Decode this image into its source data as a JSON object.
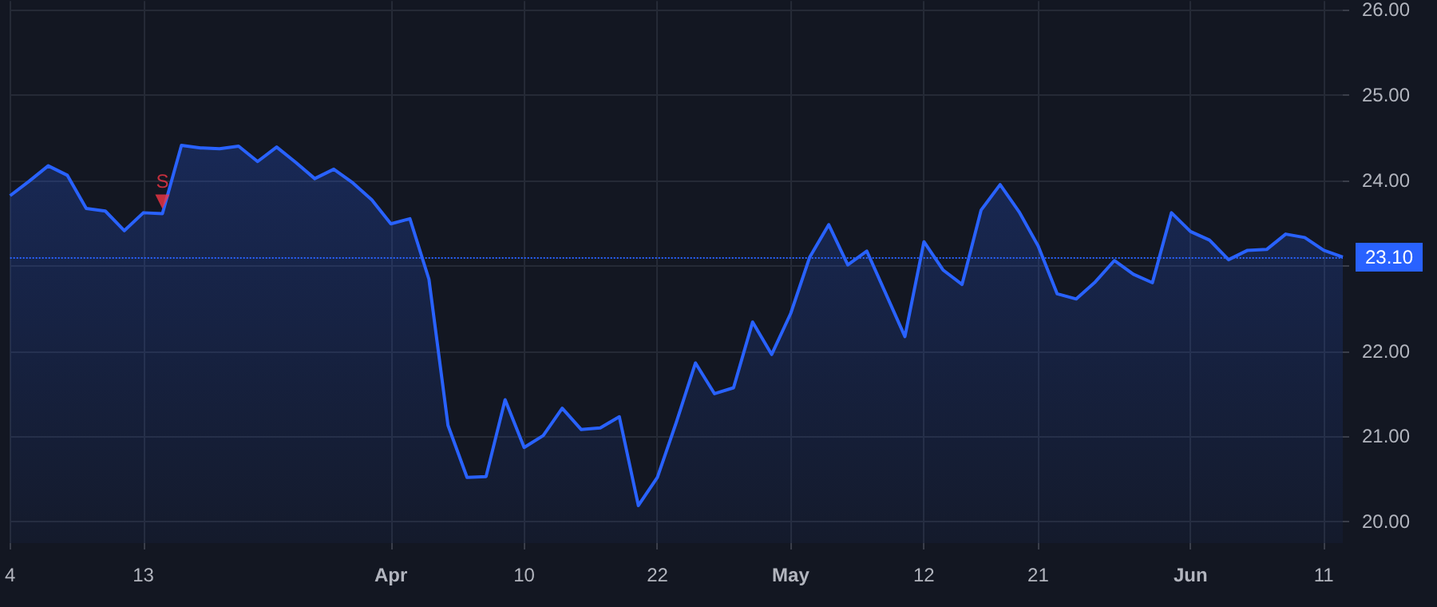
{
  "chart_data": {
    "type": "area",
    "categories": [
      "4",
      null,
      null,
      null,
      null,
      null,
      null,
      "13",
      null,
      null,
      null,
      null,
      null,
      null,
      null,
      null,
      null,
      null,
      null,
      null,
      "Apr",
      null,
      null,
      null,
      null,
      null,
      null,
      "10",
      null,
      null,
      null,
      null,
      null,
      null,
      "22",
      null,
      null,
      null,
      null,
      null,
      null,
      "May",
      null,
      null,
      null,
      null,
      null,
      null,
      "12",
      null,
      null,
      null,
      null,
      null,
      "21",
      null,
      null,
      null,
      null,
      null,
      null,
      null,
      "Jun",
      null,
      null,
      null,
      null,
      null,
      null,
      "11",
      null
    ],
    "series": [
      {
        "color": "#2962ff",
        "marker": "none",
        "values": [
          23.82,
          23.99,
          24.17,
          24.06,
          23.67,
          23.64,
          23.41,
          23.62,
          23.61,
          24.41,
          24.38,
          24.37,
          24.4,
          24.22,
          24.39,
          24.21,
          24.02,
          24.13,
          23.97,
          23.77,
          23.49,
          23.55,
          22.84,
          21.13,
          20.52,
          20.53,
          21.43,
          20.87,
          21.01,
          21.33,
          21.08,
          21.1,
          21.23,
          20.19,
          20.52,
          21.17,
          21.86,
          21.5,
          21.57,
          22.34,
          21.96,
          22.44,
          23.1,
          23.48,
          23.01,
          23.17,
          22.67,
          22.17,
          23.28,
          22.95,
          22.78,
          23.65,
          23.95,
          23.63,
          23.23,
          22.67,
          22.61,
          22.81,
          23.06,
          22.9,
          22.8,
          23.62,
          23.4,
          23.3,
          23.07,
          23.18,
          23.19,
          23.37,
          23.33,
          23.18,
          23.1
        ]
      },
      {
        "type": "scatter",
        "name": "S",
        "color": "#f23645",
        "marker": "triangle",
        "values": [
          null,
          null,
          null,
          null,
          null,
          null,
          null,
          null,
          23.75,
          null,
          null,
          null,
          null,
          null,
          null,
          null,
          null,
          null,
          null,
          null,
          null,
          null,
          null,
          null,
          null,
          null,
          null,
          null,
          null,
          null,
          null,
          null,
          null,
          null,
          null,
          null,
          null,
          null,
          null,
          null,
          null,
          null,
          null,
          null,
          null,
          null,
          null,
          null,
          null,
          null,
          null,
          null,
          null,
          null,
          null,
          null,
          null,
          null,
          null,
          null,
          null,
          null,
          null,
          null,
          null,
          null,
          null,
          null,
          null,
          null,
          null
        ]
      }
    ],
    "ylim": [
      19.75,
      26.1
    ],
    "yticks": [
      {
        "value": 20,
        "label": "20.00"
      },
      {
        "value": 21,
        "label": "21.00"
      },
      {
        "value": 22,
        "label": "22.00"
      },
      {
        "value": 23,
        "label": null
      },
      {
        "value": 24,
        "label": "24.00"
      },
      {
        "value": 25,
        "label": "25.00"
      },
      {
        "value": 26,
        "label": "26.00"
      }
    ],
    "ref_lines": [
      {
        "axis": "y",
        "value": 23.1,
        "label": "23.10",
        "color": "#2962ff",
        "line_style": "dotted"
      }
    ],
    "grid": true,
    "legend": false
  }
}
